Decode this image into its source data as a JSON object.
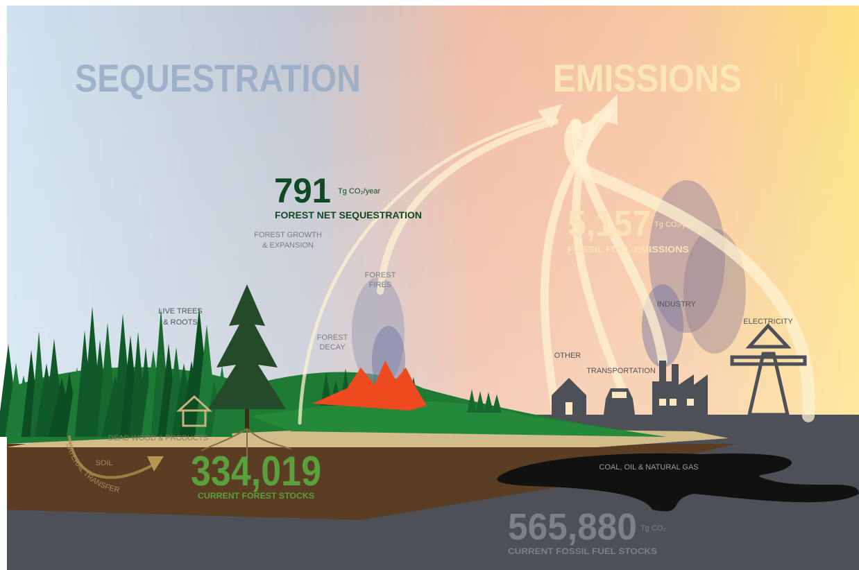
{
  "headings": {
    "sequestration": "SEQUESTRATION",
    "emissions": "EMISSIONS"
  },
  "forest_net_sequestration": {
    "value": "791",
    "unit": "Tg CO₂/year",
    "label": "FOREST NET SEQUESTRATION"
  },
  "fossil_fuel_emissions": {
    "value": "5,157",
    "unit": "Tg CO₂/year",
    "label": "FOSSIL FUEL EMISSIONS"
  },
  "current_forest_stocks": {
    "value": "334,019",
    "label": "CURRENT FOREST STOCKS"
  },
  "current_fossil_fuel_stocks": {
    "value": "565,880",
    "unit": "Tg CO₂",
    "label": "CURRENT FOSSIL FUEL STOCKS"
  },
  "labels": {
    "forest_growth": [
      "FOREST GROWTH",
      "& EXPANSION"
    ],
    "forest_fires": [
      "FOREST",
      "FIRES"
    ],
    "forest_decay": [
      "FOREST",
      "DECAY"
    ],
    "live_trees": [
      "LIVE TREES",
      "& ROOTS"
    ],
    "industry": "INDUSTRY",
    "electricity": "ELECTRICITY",
    "other": "OTHER",
    "transportation": "TRANSPORTATION",
    "dead_wood": "DEAD WOOD & PRODUCTS",
    "soil": "SOIL",
    "lateral_transfer": "LATERAL TRANSFER",
    "fossil_reserves": "COAL, OIL & NATURAL GAS"
  }
}
